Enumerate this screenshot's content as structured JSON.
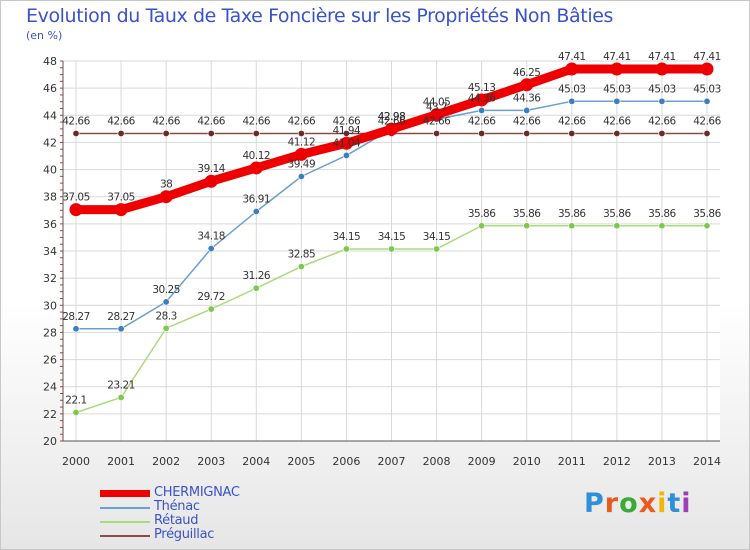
{
  "page": {
    "title": "Evolution du Taux de Taxe Foncière sur les Propriétés Non Bâties",
    "unit": "(en %)"
  },
  "brand": {
    "letters": [
      "P",
      "r",
      "o",
      "x",
      "i",
      "t",
      "i"
    ],
    "colors": [
      "#2f8fd8",
      "#e95a1c",
      "#3aa935",
      "#e95a1c",
      "#f2b705",
      "#2f8fd8",
      "#9a3fb5"
    ]
  },
  "chart_data": {
    "type": "line",
    "title": "Evolution du Taux de Taxe Foncière sur les Propriétés Non Bâties",
    "ylabel": "(en %)",
    "xlabel": "",
    "ylim": [
      20,
      48
    ],
    "yticks": [
      20,
      22,
      24,
      26,
      28,
      30,
      32,
      34,
      36,
      38,
      40,
      42,
      44,
      46,
      48
    ],
    "categories": [
      "2000",
      "2001",
      "2002",
      "2003",
      "2004",
      "2005",
      "2006",
      "2007",
      "2008",
      "2009",
      "2010",
      "2011",
      "2012",
      "2013",
      "2014"
    ],
    "series": [
      {
        "name": "CHERMIGNAC",
        "color": "#ee0000",
        "width": 9,
        "marker": "#ee0000",
        "marker_r": 6.5,
        "values": [
          37.05,
          37.05,
          38,
          39.14,
          40.12,
          41.12,
          41.94,
          42.98,
          44.05,
          45.13,
          46.25,
          47.41,
          47.41,
          47.41,
          47.41
        ],
        "labels": [
          "37.05",
          "37.05",
          "38",
          "39.14",
          "40.12",
          "41.12",
          "41.94",
          "42.98",
          "44.05",
          "45.13",
          "46.25",
          "47.41",
          "47.41",
          "47.41",
          "47.41"
        ]
      },
      {
        "name": "Thénac",
        "color": "#6a9fcf",
        "width": 1.5,
        "marker": "#3c7fbf",
        "marker_r": 3.2,
        "values": [
          28.27,
          28.27,
          30.25,
          34.18,
          36.91,
          39.49,
          41.04,
          42.98,
          43.7,
          44.36,
          44.36,
          45.03,
          45.03,
          45.03,
          45.03
        ],
        "labels": [
          "28.27",
          "28.27",
          "30.25",
          "34.18",
          "36.91",
          "39.49",
          "41.04",
          "42.98",
          "43.7",
          "44.36",
          "44.36",
          "45.03",
          "45.03",
          "45.03",
          "45.03"
        ]
      },
      {
        "name": "Rétaud",
        "color": "#a8dc78",
        "width": 1.5,
        "marker": "#7ec850",
        "marker_r": 3.2,
        "values": [
          22.1,
          23.21,
          28.3,
          29.72,
          31.26,
          32.85,
          34.15,
          34.15,
          34.15,
          35.86,
          35.86,
          35.86,
          35.86,
          35.86,
          35.86
        ],
        "labels": [
          "22.1",
          "23.21",
          "28.3",
          "29.72",
          "31.26",
          "32.85",
          "34.15",
          "34.15",
          "34.15",
          "35.86",
          "35.86",
          "35.86",
          "35.86",
          "35.86",
          "35.86"
        ]
      },
      {
        "name": "Préguillac",
        "color": "#8a4a4a",
        "width": 1.5,
        "marker": "#6b2b2b",
        "marker_r": 3.2,
        "values": [
          42.66,
          42.66,
          42.66,
          42.66,
          42.66,
          42.66,
          42.66,
          42.66,
          42.66,
          42.66,
          42.66,
          42.66,
          42.66,
          42.66,
          42.66
        ],
        "labels": [
          "42.66",
          "42.66",
          "42.66",
          "42.66",
          "42.66",
          "42.66",
          "42.66",
          "42.66",
          "42.66",
          "42.66",
          "42.66",
          "42.66",
          "42.66",
          "42.66",
          "42.66"
        ]
      }
    ],
    "legend": [
      "CHERMIGNAC",
      "Thénac",
      "Rétaud",
      "Préguillac"
    ],
    "legend_position": "bottom-left",
    "grid": true
  }
}
